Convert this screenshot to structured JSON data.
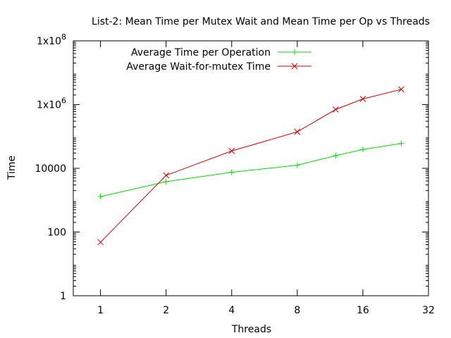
{
  "chart_data": {
    "type": "line",
    "title": "List-2: Mean Time per Mutex Wait and Mean Time per Op vs Threads",
    "xlabel": "Threads",
    "ylabel": "Time",
    "x_scale": "log2",
    "y_scale": "log10",
    "xlim": [
      0.75,
      32
    ],
    "ylim": [
      1,
      100000000
    ],
    "x_ticks": [
      {
        "value": 1,
        "label": "1"
      },
      {
        "value": 2,
        "label": "2"
      },
      {
        "value": 4,
        "label": "4"
      },
      {
        "value": 8,
        "label": "8"
      },
      {
        "value": 16,
        "label": "16"
      },
      {
        "value": 32,
        "label": "32"
      }
    ],
    "y_ticks": [
      {
        "value": 1,
        "label": "1"
      },
      {
        "value": 100,
        "label": "100"
      },
      {
        "value": 10000,
        "label": "10000"
      },
      {
        "value": 1000000,
        "label": "1x10",
        "sup": "6"
      },
      {
        "value": 100000000,
        "label": "1x10",
        "sup": "8"
      }
    ],
    "legend_position": "top-left",
    "series": [
      {
        "name": "Average Time per Operation",
        "color": "#00dd00",
        "marker": "plus",
        "x": [
          1,
          2,
          4,
          8,
          12,
          16,
          24
        ],
        "y": [
          1300,
          3800,
          7500,
          12500,
          25000,
          39000,
          60000
        ]
      },
      {
        "name": "Average Wait-for-mutex Time",
        "color": "#dd0000",
        "marker": "cross",
        "x": [
          1,
          2,
          4,
          8,
          12,
          16,
          24
        ],
        "y": [
          48,
          6000,
          35000,
          140000,
          700000,
          1500000,
          3000000
        ]
      }
    ]
  }
}
